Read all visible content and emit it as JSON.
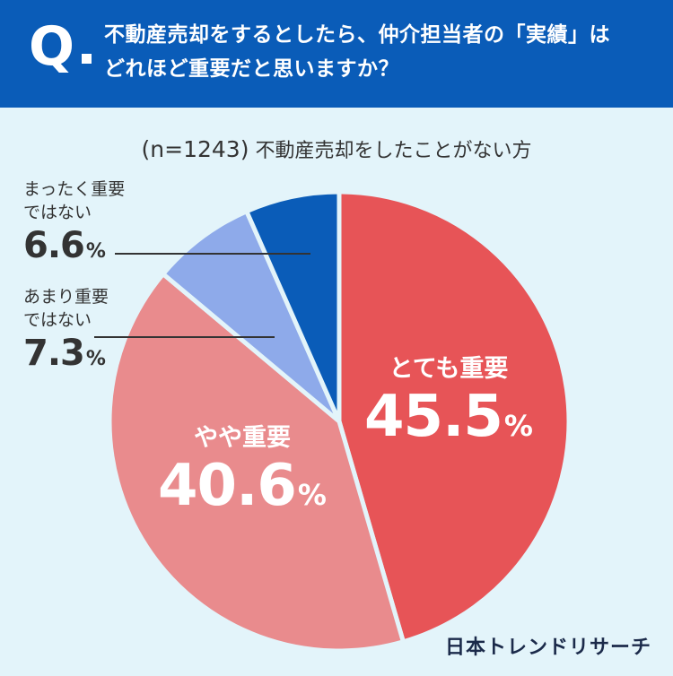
{
  "question": {
    "mark": "Q",
    "line1": "不動産売却をするとしたら、仲介担当者の「実績」は",
    "line2": "どれほど重要だと思いますか？"
  },
  "subtitle": {
    "sample": "(n=1243)",
    "text": "不動産売却をしたことがない方"
  },
  "brand": "日本トレンドリサーチ",
  "colors": {
    "header_bg": "#0a5cb8",
    "page_bg": "#e3f4fa",
    "very_important": "#e75457",
    "somewhat_important": "#e98b8d",
    "not_very_important": "#8eaaea",
    "not_at_all_important": "#0a5cb8"
  },
  "chart_data": {
    "type": "pie",
    "title": "",
    "unit": "%",
    "slices": [
      {
        "label": "とても重要",
        "value": 45.5,
        "value_text": "45.5",
        "color": "#e75457"
      },
      {
        "label": "やや重要",
        "value": 40.6,
        "value_text": "40.6",
        "color": "#e98b8d"
      },
      {
        "label": "あまり重要ではない",
        "label_lines": [
          "あまり重要",
          "ではない"
        ],
        "value": 7.3,
        "value_text": "7.3",
        "color": "#8eaaea"
      },
      {
        "label": "まったく重要ではない",
        "label_lines": [
          "まったく重要",
          "ではない"
        ],
        "value": 6.6,
        "value_text": "6.6",
        "color": "#0a5cb8"
      }
    ]
  }
}
